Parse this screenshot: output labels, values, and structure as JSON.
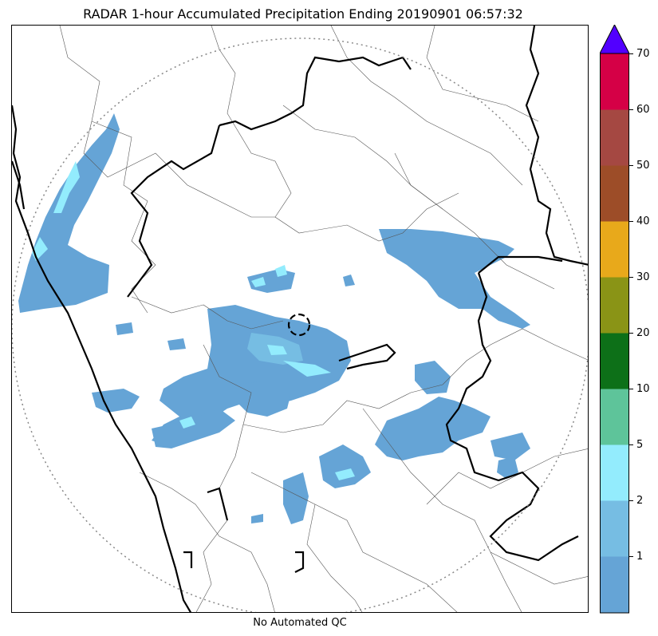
{
  "title": "RADAR 1-hour Accumulated Precipitation Ending 20190901 06:57:32",
  "footer": "No Automated QC",
  "colorbar": {
    "extend": "max",
    "extend_color": "#5200ff",
    "segments": [
      {
        "color": "#65a4d6"
      },
      {
        "color": "#76bde3"
      },
      {
        "color": "#93ecfd"
      },
      {
        "color": "#5ec49a"
      },
      {
        "color": "#0d7018"
      },
      {
        "color": "#8a9416"
      },
      {
        "color": "#e8a91b"
      },
      {
        "color": "#9d4d28"
      },
      {
        "color": "#a54842"
      },
      {
        "color": "#d50046"
      }
    ],
    "ticks": [
      "1",
      "2",
      "5",
      "10",
      "20",
      "30",
      "40",
      "50",
      "60",
      "70"
    ]
  },
  "precip_colors": {
    "light": "#65a4d6",
    "medium": "#76bde3",
    "heavy": "#93ecfd",
    "green": "#5ec49a"
  }
}
